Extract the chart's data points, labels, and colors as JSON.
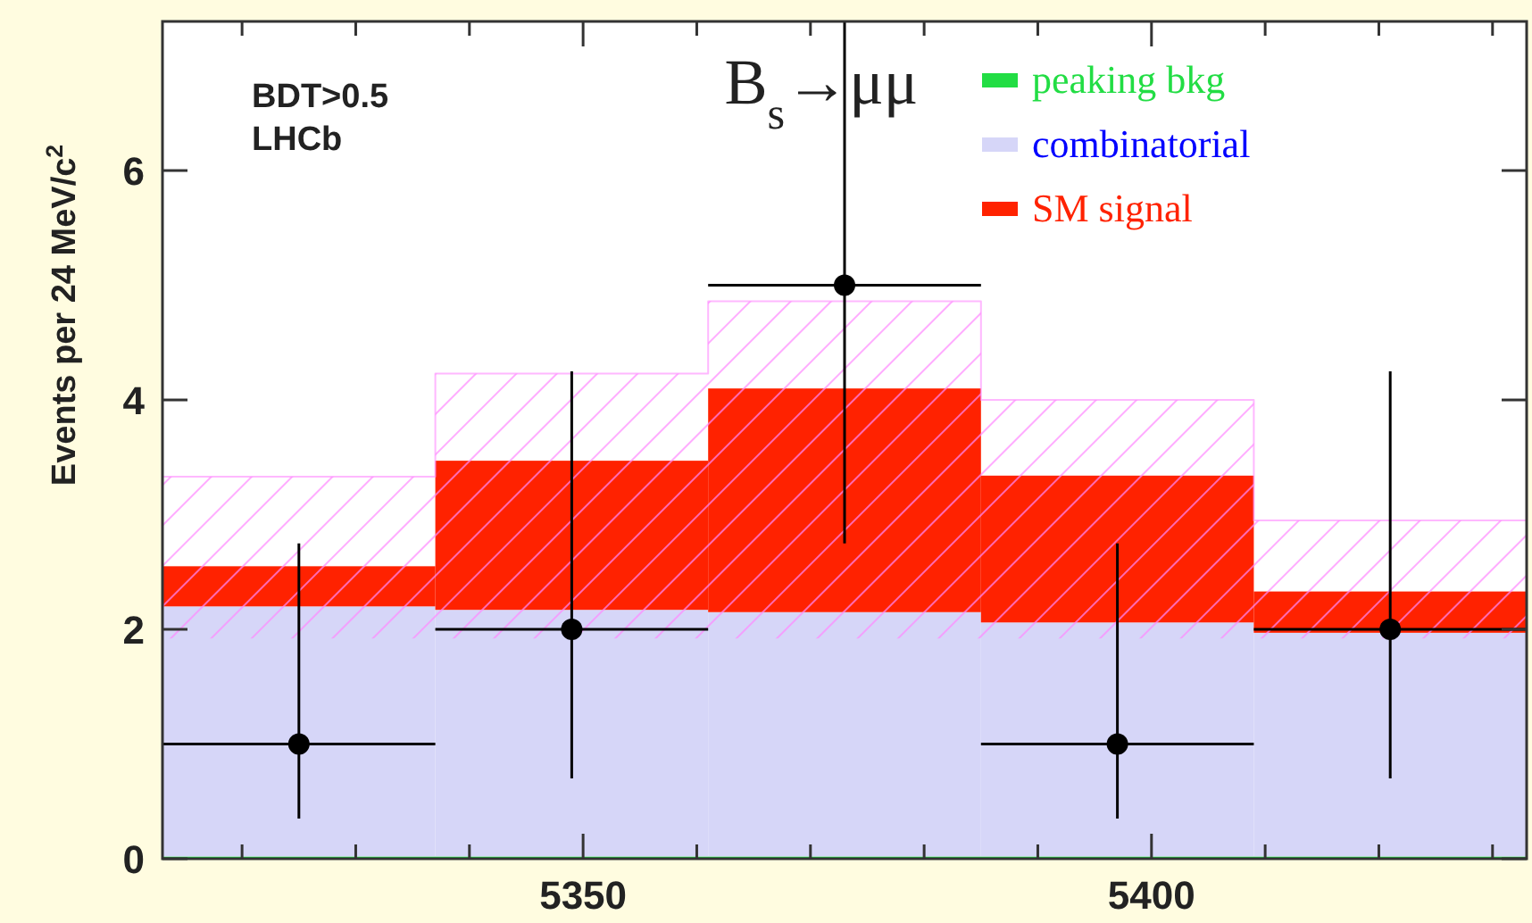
{
  "chart_data": {
    "type": "bar",
    "title": "B$_{s}$→μμ",
    "ylabel": "Events per 24 MeV/c$^{2}$",
    "annotations": [
      "BDT>0.5",
      "LHCb"
    ],
    "x": [
      5325,
      5349,
      5373,
      5397,
      5421
    ],
    "stacked": true,
    "series": [
      {
        "name": "peaking bkg",
        "type": "area",
        "color": "#22dd44",
        "x": [
          5313,
          5337,
          5361,
          5385,
          5409,
          5433
        ],
        "values": [
          0.02,
          0.02,
          0.02,
          0.02,
          0.02,
          0.02
        ]
      },
      {
        "name": "combinatorial",
        "color": "#d6d6f8",
        "values": [
          2.18,
          2.15,
          2.13,
          2.04,
          1.95
        ]
      },
      {
        "name": "SM signal",
        "color": "#ff2200",
        "values": [
          0.35,
          1.3,
          1.95,
          1.28,
          0.36
        ]
      },
      {
        "type": "step",
        "color": "#ff88ff",
        "x": [
          5313,
          5337,
          5361,
          5385,
          5409,
          5433
        ],
        "values": [
          3.33,
          4.23,
          4.86,
          4.0,
          2.95,
          2.95
        ],
        "lower": [
          1.92,
          1.92,
          1.92,
          1.92,
          1.92,
          1.92
        ],
        "upper": [
          3.33,
          4.23,
          4.86,
          4.0,
          2.95,
          2.95
        ]
      },
      {
        "type": "scatter",
        "color": "#000000",
        "marker": "circle",
        "x": [
          5325,
          5349,
          5373,
          5397,
          5421
        ],
        "values": [
          1,
          2,
          5,
          1,
          2
        ],
        "errors": [
          [
            0.35,
            2.75
          ],
          [
            0.7,
            4.25
          ],
          [
            2.75,
            7.3
          ],
          [
            0.35,
            2.75
          ],
          [
            0.7,
            4.25
          ]
        ],
        "xerrors": [
          12,
          12,
          12,
          12,
          12
        ]
      }
    ],
    "xlim": [
      5313,
      5433
    ],
    "ylim": [
      0,
      7.3
    ],
    "xticks": [
      {
        "value": 5320,
        "label": null
      },
      {
        "value": 5330,
        "label": null
      },
      {
        "value": 5340,
        "label": null
      },
      5350,
      {
        "value": 5360,
        "label": null
      },
      {
        "value": 5370,
        "label": null
      },
      {
        "value": 5380,
        "label": null
      },
      {
        "value": 5390,
        "label": null
      },
      5400,
      {
        "value": 5410,
        "label": null
      },
      {
        "value": 5420,
        "label": null
      },
      {
        "value": 5430,
        "label": null
      }
    ],
    "yticks": [
      0,
      2,
      4,
      6
    ],
    "legend": "top right"
  }
}
